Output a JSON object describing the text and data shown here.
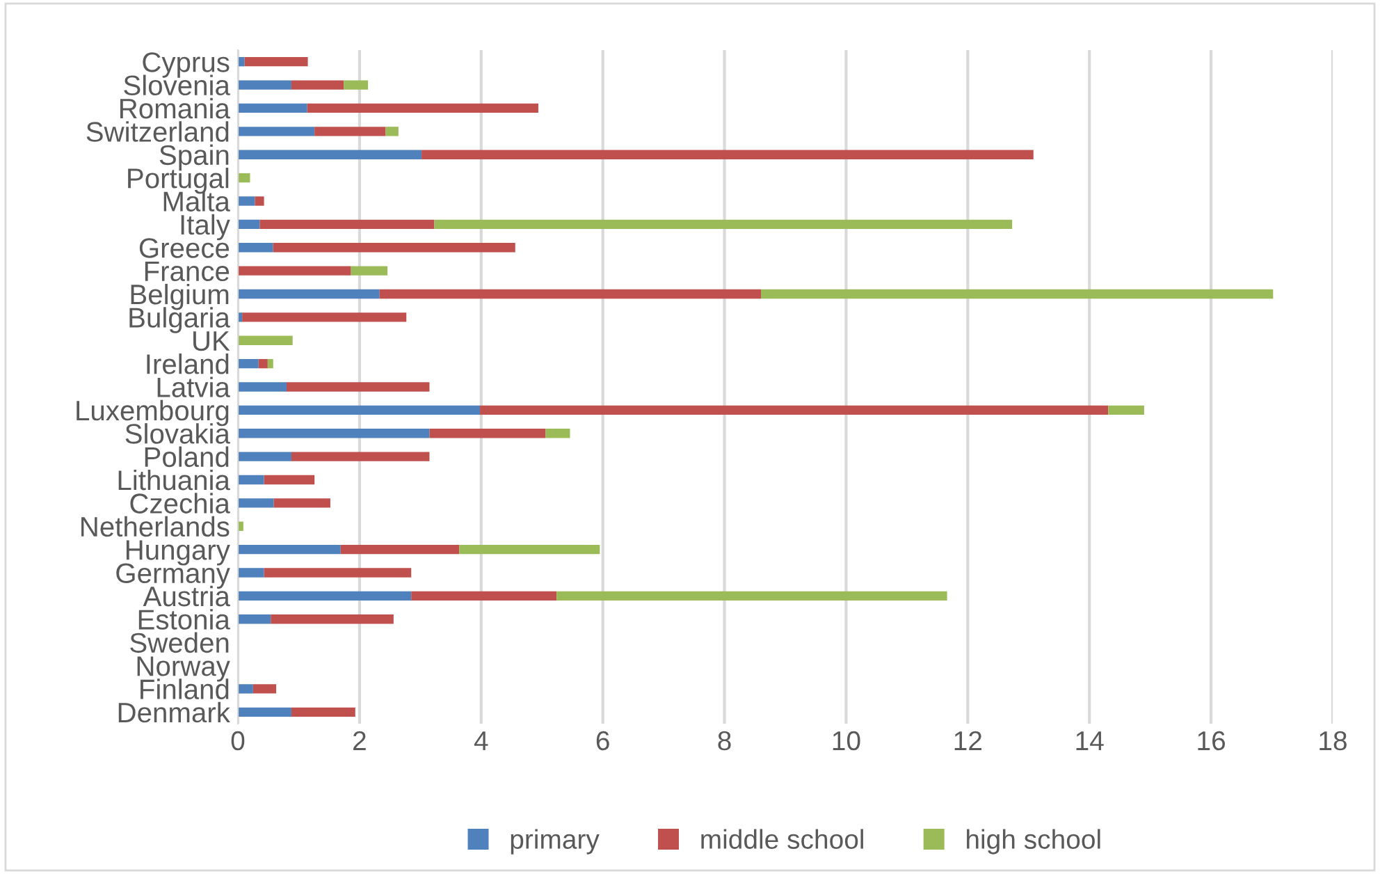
{
  "chart_data": {
    "type": "bar",
    "orientation": "horizontal",
    "stacked": true,
    "categories": [
      "Cyprus",
      "Slovenia",
      "Romania",
      "Switzerland",
      "Spain",
      "Portugal",
      "Malta",
      "Italy",
      "Greece",
      "France",
      "Belgium",
      "Bulgaria",
      "UK",
      "Ireland",
      "Latvia",
      "Luxembourg",
      "Slovakia",
      "Poland",
      "Lithuania",
      "Czechia",
      "Netherlands",
      "Hungary",
      "Germany",
      "Austria",
      "Estonia",
      "Sweden",
      "Norway",
      "Finland",
      "Denmark"
    ],
    "series": [
      {
        "name": "primary",
        "color": "#4f81bd",
        "values": [
          0.11,
          0.88,
          1.14,
          1.26,
          3.02,
          0,
          0.28,
          0.36,
          0.58,
          0,
          2.33,
          0.07,
          0,
          0.34,
          0.8,
          3.98,
          3.15,
          0.88,
          0.43,
          0.59,
          0,
          1.69,
          0.43,
          2.85,
          0.54,
          0,
          0,
          0.25,
          0.88
        ]
      },
      {
        "name": "middle school",
        "color": "#c0504d",
        "values": [
          1.04,
          0.86,
          3.8,
          1.17,
          10.06,
          0,
          0.15,
          2.87,
          3.98,
          1.86,
          6.27,
          2.7,
          0,
          0.15,
          2.35,
          10.33,
          1.91,
          2.27,
          0.83,
          0.93,
          0,
          1.95,
          2.42,
          2.39,
          2.02,
          0,
          0,
          0.38,
          1.05
        ]
      },
      {
        "name": "high school",
        "color": "#9bbb59",
        "values": [
          0,
          0.4,
          0,
          0.21,
          0,
          0.2,
          0,
          9.5,
          0,
          0.6,
          8.42,
          0,
          0.9,
          0.09,
          0,
          0.59,
          0.4,
          0,
          0,
          0,
          0.09,
          2.31,
          0,
          6.42,
          0,
          0,
          0,
          0,
          0
        ]
      }
    ],
    "xlim": [
      0,
      18
    ],
    "xticks": [
      0,
      2,
      4,
      6,
      8,
      10,
      12,
      14,
      16,
      18
    ],
    "grid": "x",
    "legend": "bottom"
  }
}
